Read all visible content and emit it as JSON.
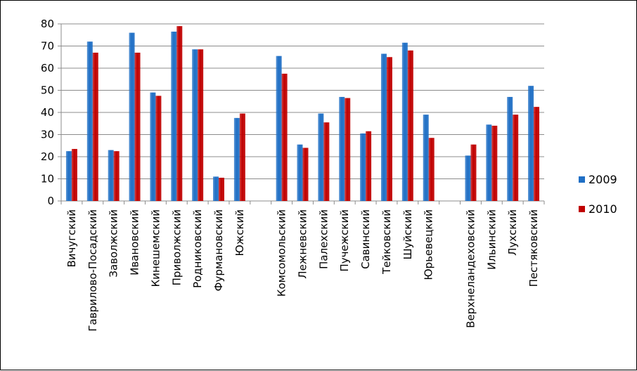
{
  "chart_data": {
    "type": "bar",
    "ylim": [
      0,
      80
    ],
    "yticks": [
      "0",
      "10",
      "20",
      "30",
      "40",
      "50",
      "60",
      "70",
      "80"
    ],
    "grid": true,
    "legend_position": "right",
    "categories": [
      "Вичугский",
      "Гаврилово-Посадский",
      "Заволжский",
      "Ивановский",
      "Кинешемский",
      "Приволжский",
      "Родниковский",
      "Фурмановский",
      "Южский",
      "",
      "Комсомольский",
      "Лежневский",
      "Палехский",
      "Пучежский",
      "Савинский",
      "Тейковский",
      "Шуйский",
      "Юрьевецкий",
      "",
      "Верхнеландеховский",
      "Ильинский",
      "Лухский",
      "Пестяковский"
    ],
    "series": [
      {
        "name": "2009",
        "color": "#1f6fc5",
        "values": [
          22.5,
          72,
          23,
          76,
          49,
          76.5,
          68.5,
          11,
          37.5,
          null,
          65.5,
          25.5,
          39.5,
          47,
          30.5,
          66.5,
          71.5,
          39,
          null,
          20.5,
          34.5,
          47,
          52
        ]
      },
      {
        "name": "2010",
        "color": "#c00000",
        "values": [
          23.5,
          67,
          22.5,
          67,
          47.5,
          79,
          68.5,
          10.5,
          39.5,
          null,
          57.5,
          24,
          35.5,
          46.5,
          31.5,
          65,
          68,
          28.5,
          null,
          25.5,
          34,
          39,
          42.5
        ]
      }
    ]
  }
}
